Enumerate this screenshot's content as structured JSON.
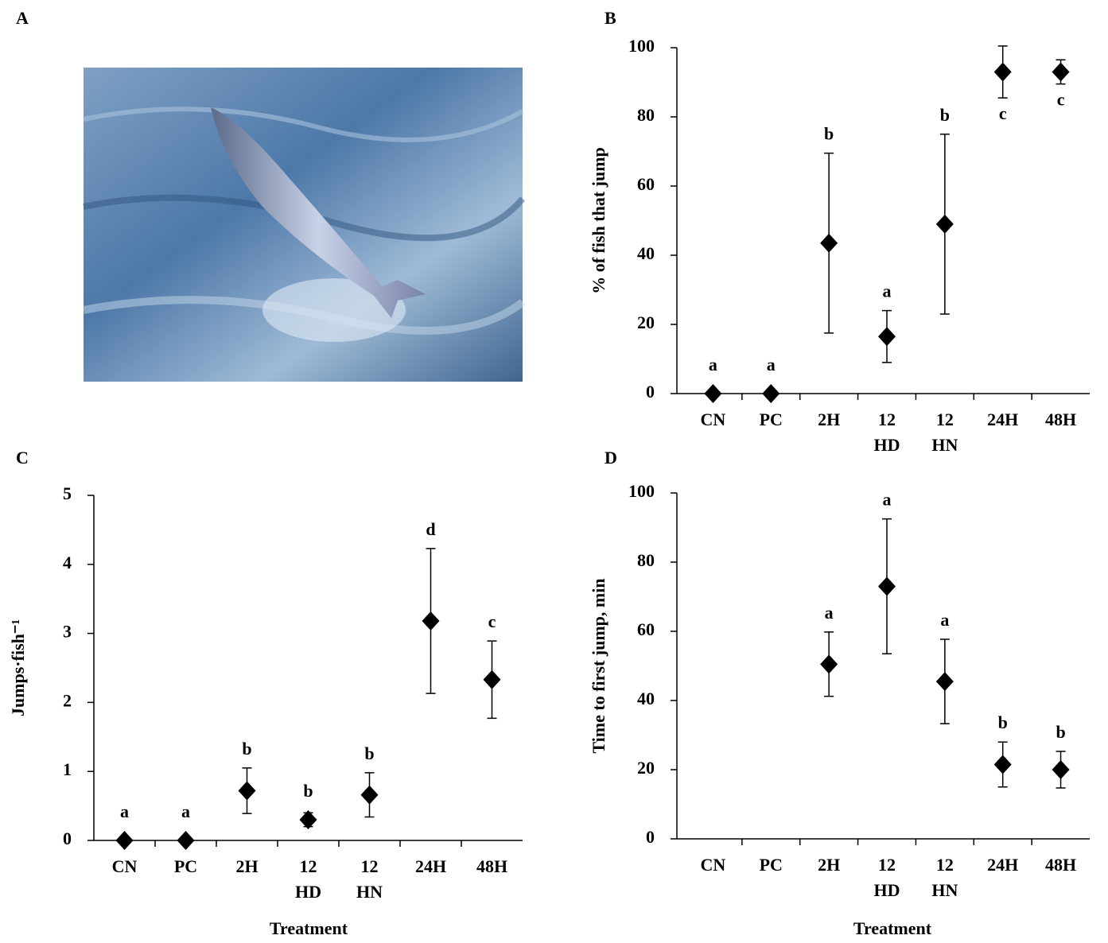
{
  "photo_panel": {
    "panel_label": "A"
  },
  "chart_data": [
    {
      "type": "errorbar",
      "panel_label": "B",
      "y_label": "% of fish that jump",
      "categories": [
        "CN",
        "PC",
        "2H",
        "12 HD",
        "12 HN",
        "24H",
        "48H"
      ],
      "values": [
        0,
        0,
        43.5,
        16.5,
        49,
        93,
        93
      ],
      "errors": [
        0,
        0,
        26,
        7.5,
        26,
        7.5,
        3.5
      ],
      "annotations": [
        "a",
        "a",
        "b",
        "a",
        "b",
        "c",
        "c"
      ],
      "color": "#000000",
      "ylim": [
        0,
        100
      ],
      "yticks": [
        0,
        20,
        40,
        60,
        80,
        100
      ]
    },
    {
      "type": "errorbar",
      "panel_label": "C",
      "y_label": "Jumps·fish⁻¹",
      "x_label": "Treatment",
      "categories": [
        "CN",
        "PC",
        "2H",
        "12 HD",
        "12 HN",
        "24H",
        "48H"
      ],
      "values": [
        0,
        0,
        0.72,
        0.3,
        0.66,
        3.18,
        2.33
      ],
      "errors": [
        0,
        0,
        0.33,
        0.1,
        0.32,
        1.05,
        0.56
      ],
      "annotations": [
        "a",
        "a",
        "b",
        "b",
        "b",
        "d",
        "c"
      ],
      "color": "#000000",
      "ylim": [
        0,
        5
      ],
      "yticks": [
        0,
        1,
        2,
        3,
        4,
        5
      ]
    },
    {
      "type": "errorbar",
      "panel_label": "D",
      "y_label": "Time to first jump, min",
      "x_label": "Treatment",
      "categories": [
        "CN",
        "PC",
        "2H",
        "12 HD",
        "12 HN",
        "24H",
        "48H"
      ],
      "values": [
        null,
        null,
        50.5,
        73,
        45.5,
        21.5,
        20
      ],
      "errors": [
        null,
        null,
        9.3,
        19.5,
        12.2,
        6.5,
        5.3
      ],
      "annotations": [
        null,
        null,
        "a",
        "a",
        "a",
        "b",
        "b"
      ],
      "color": "#000000",
      "ylim": [
        0,
        100
      ],
      "yticks": [
        0,
        20,
        40,
        60,
        80,
        100
      ]
    }
  ]
}
